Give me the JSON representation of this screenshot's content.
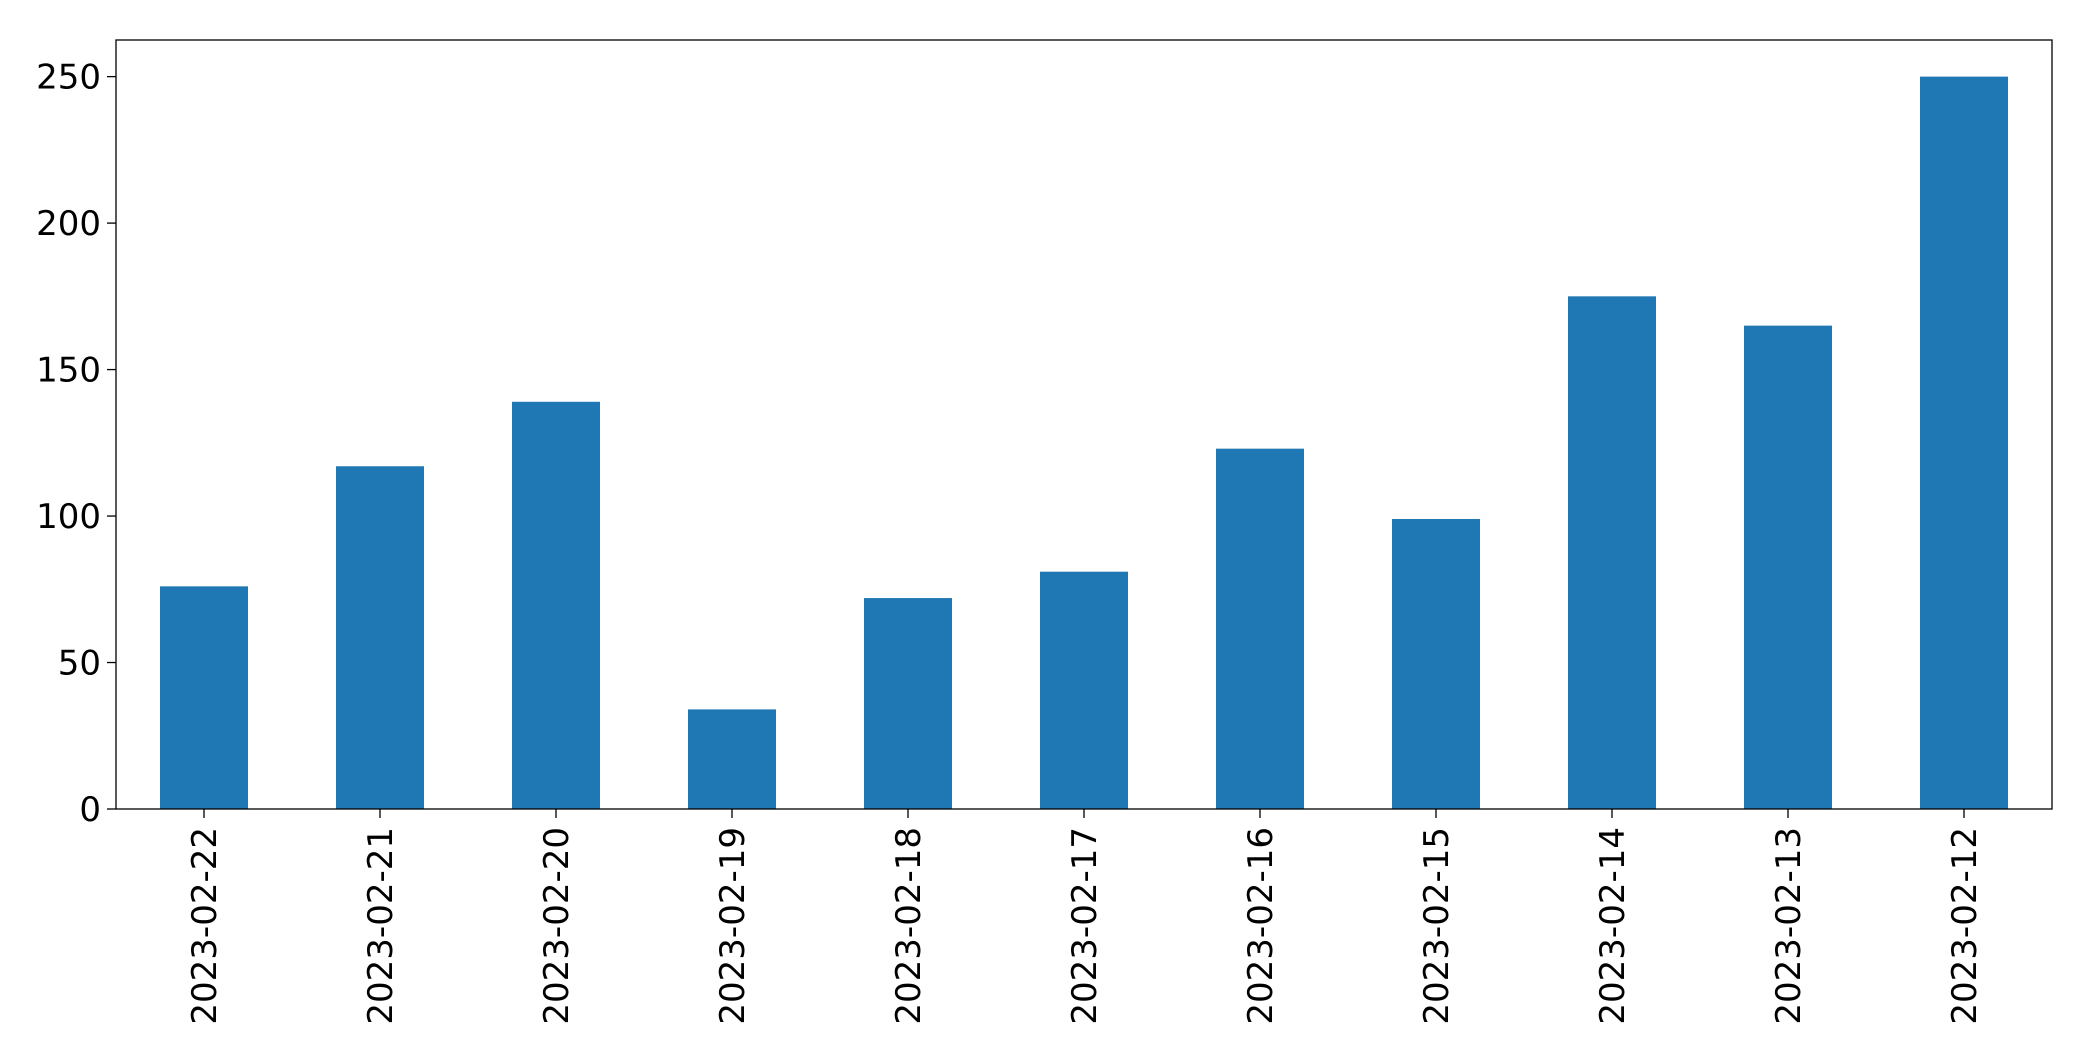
{
  "chart_data": {
    "type": "bar",
    "categories": [
      "2023-02-22",
      "2023-02-21",
      "2023-02-20",
      "2023-02-19",
      "2023-02-18",
      "2023-02-17",
      "2023-02-16",
      "2023-02-15",
      "2023-02-14",
      "2023-02-13",
      "2023-02-12"
    ],
    "values": [
      76,
      117,
      139,
      34,
      72,
      81,
      123,
      99,
      175,
      165,
      250
    ],
    "color": "#1f77b4",
    "ylim": [
      0,
      262.5
    ],
    "yticks": [
      0,
      50,
      100,
      150,
      200,
      250
    ],
    "grid": false
  }
}
